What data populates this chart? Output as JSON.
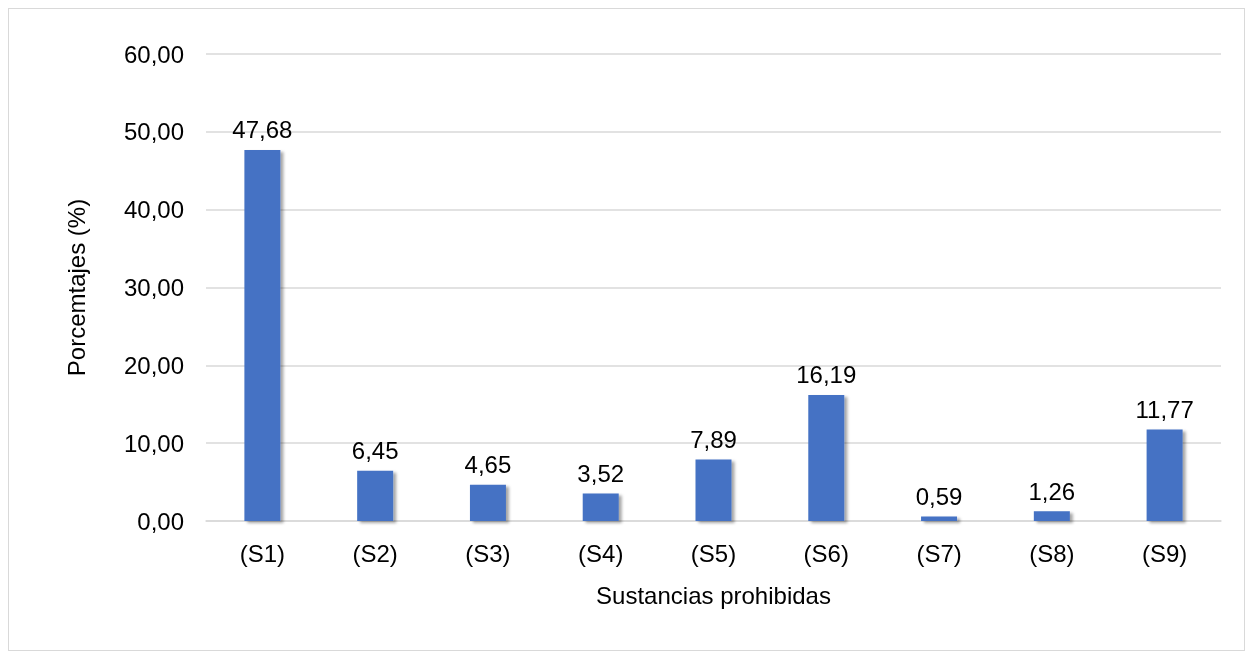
{
  "chart_data": {
    "type": "bar",
    "xlabel": "Sustancias prohibidas",
    "ylabel": "Porcemtajes (%)",
    "categories": [
      "(S1)",
      "(S2)",
      "(S3)",
      "(S4)",
      "(S5)",
      "(S6)",
      "(S7)",
      "(S8)",
      "(S9)"
    ],
    "values": [
      47.68,
      6.45,
      4.65,
      3.52,
      7.89,
      16.19,
      0.59,
      1.26,
      11.77
    ],
    "value_labels": [
      "47,68",
      "6,45",
      "4,65",
      "3,52",
      "7,89",
      "16,19",
      "0,59",
      "1,26",
      "11,77"
    ],
    "color": "#4472c4",
    "ylim": [
      0,
      60
    ],
    "yticks": [
      {
        "value": 0,
        "label": "0,00"
      },
      {
        "value": 10,
        "label": "10,00"
      },
      {
        "value": 20,
        "label": "20,00"
      },
      {
        "value": 30,
        "label": "30,00"
      },
      {
        "value": 40,
        "label": "40,00"
      },
      {
        "value": 50,
        "label": "50,00"
      },
      {
        "value": 60,
        "label": "60,00"
      }
    ],
    "grid": "y"
  }
}
